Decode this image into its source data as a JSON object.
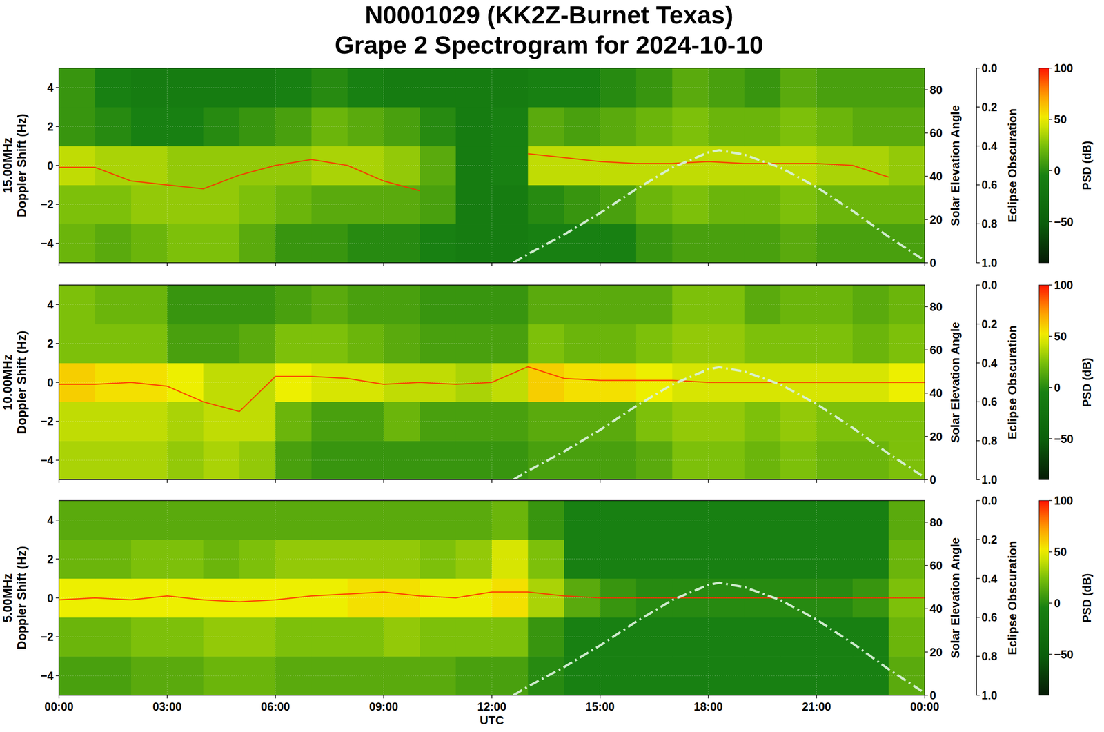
{
  "chart_data": [
    {
      "type": "heatmap",
      "title": [
        "N0001029 (KK2Z-Burnet Texas)",
        "Grape 2 Spectrogram for 2024-10-10"
      ],
      "ylabel": [
        "15.00MHz",
        "Doppler Shift (Hz)"
      ],
      "y2label": "Solar Elevation Angle",
      "y3label": "Eclipse Obscuration",
      "xlim": [
        0,
        24
      ],
      "xticks": [
        {
          "value": 0,
          "label": "00:00"
        },
        {
          "value": 3,
          "label": "03:00"
        },
        {
          "value": 6,
          "label": "06:00"
        },
        {
          "value": 9,
          "label": "09:00"
        },
        {
          "value": 12,
          "label": "12:00"
        },
        {
          "value": 15,
          "label": "15:00"
        },
        {
          "value": 18,
          "label": "18:00"
        },
        {
          "value": 21,
          "label": "21:00"
        },
        {
          "value": 24,
          "label": "00:00"
        }
      ],
      "ylim": [
        -5,
        5
      ],
      "yticks": [
        {
          "value": -4,
          "label": "−4"
        },
        {
          "value": -2,
          "label": "−2"
        },
        0,
        2,
        4
      ],
      "y2lim": [
        0,
        90
      ],
      "y2ticks": [
        0,
        20,
        40,
        60,
        80
      ],
      "y3lim": [
        1,
        0
      ],
      "y3ticks": [
        {
          "value": 0,
          "label": "0.0"
        },
        {
          "value": 0.2,
          "label": "0.2"
        },
        {
          "value": 0.4,
          "label": "0.4"
        },
        {
          "value": 0.6,
          "label": "0.6"
        },
        {
          "value": 0.8,
          "label": "0.8"
        },
        {
          "value": 1,
          "label": "1.0"
        }
      ],
      "grid": true,
      "tick_labels": "y",
      "colorbar": {
        "label": "PSD (dB)",
        "lim": [
          -90,
          100
        ],
        "ticks": [
          {
            "value": -50,
            "label": "−50"
          },
          0,
          50,
          100
        ]
      },
      "x_edges": [
        0,
        1,
        2,
        3,
        4,
        5,
        6,
        7,
        8,
        9,
        10,
        11,
        12,
        13,
        14,
        15,
        16,
        17,
        18,
        19,
        20,
        21,
        22,
        23,
        24
      ],
      "y_edges": [
        -5,
        -3,
        -1,
        1,
        3,
        5
      ],
      "cells": [
        [
          20,
          15,
          20,
          25,
          25,
          15,
          5,
          5,
          0,
          0,
          -5,
          -10,
          -10,
          -5,
          -5,
          -5,
          5,
          10,
          10,
          10,
          15,
          10,
          10,
          10
        ],
        [
          25,
          25,
          30,
          30,
          30,
          25,
          20,
          15,
          15,
          15,
          10,
          -10,
          -10,
          0,
          5,
          10,
          20,
          25,
          20,
          20,
          25,
          20,
          20,
          20
        ],
        [
          40,
          35,
          35,
          30,
          30,
          30,
          30,
          35,
          35,
          30,
          15,
          -10,
          -5,
          40,
          40,
          40,
          40,
          40,
          40,
          40,
          40,
          35,
          35,
          30
        ],
        [
          5,
          0,
          -5,
          -5,
          0,
          5,
          10,
          20,
          15,
          10,
          0,
          -10,
          -5,
          15,
          10,
          15,
          20,
          25,
          20,
          20,
          25,
          20,
          15,
          15
        ],
        [
          5,
          -5,
          -10,
          -10,
          -10,
          -10,
          -5,
          0,
          -5,
          -10,
          -10,
          -10,
          -10,
          -5,
          -5,
          0,
          5,
          15,
          10,
          5,
          15,
          10,
          10,
          10
        ]
      ],
      "series": [
        {
          "type": "line",
          "color": "#ff2a00",
          "line_style": "solid",
          "x": [
            0,
            1,
            2,
            3,
            4,
            5,
            6,
            7,
            8,
            9,
            10,
            11,
            12,
            13,
            14,
            15,
            16,
            17,
            18,
            19,
            20,
            21,
            22,
            23,
            24
          ],
          "values": [
            -0.1,
            -0.1,
            -0.8,
            -1.0,
            -1.2,
            -0.5,
            0.0,
            0.3,
            0.0,
            -0.8,
            -1.3,
            null,
            null,
            0.6,
            0.4,
            0.2,
            0.1,
            0.1,
            0.2,
            0.1,
            0.1,
            0.1,
            0.0,
            -0.6,
            null
          ]
        },
        {
          "type": "line",
          "axis": "y2",
          "color": "#d8f0d8",
          "line_style": "dashdot",
          "x": [
            12.6,
            13,
            14,
            15,
            16,
            17,
            18,
            18.3,
            19,
            20,
            21,
            22,
            23,
            24
          ],
          "values": [
            0,
            4,
            13,
            23,
            34,
            44,
            51,
            52,
            50,
            44,
            35,
            24,
            12,
            1
          ]
        }
      ]
    },
    {
      "type": "heatmap",
      "ylabel": [
        "10.00MHz",
        "Doppler Shift (Hz)"
      ],
      "y2label": "Solar Elevation Angle",
      "y3label": "Eclipse Obscuration",
      "xlim": [
        0,
        24
      ],
      "xticks": [
        {
          "value": 0,
          "label": "00:00"
        },
        {
          "value": 3,
          "label": "03:00"
        },
        {
          "value": 6,
          "label": "06:00"
        },
        {
          "value": 9,
          "label": "09:00"
        },
        {
          "value": 12,
          "label": "12:00"
        },
        {
          "value": 15,
          "label": "15:00"
        },
        {
          "value": 18,
          "label": "18:00"
        },
        {
          "value": 21,
          "label": "21:00"
        },
        {
          "value": 24,
          "label": "00:00"
        }
      ],
      "ylim": [
        -5,
        5
      ],
      "yticks": [
        {
          "value": -4,
          "label": "−4"
        },
        {
          "value": -2,
          "label": "−2"
        },
        0,
        2,
        4
      ],
      "y2lim": [
        0,
        90
      ],
      "y2ticks": [
        0,
        20,
        40,
        60,
        80
      ],
      "y3lim": [
        1,
        0
      ],
      "y3ticks": [
        {
          "value": 0,
          "label": "0.0"
        },
        {
          "value": 0.2,
          "label": "0.2"
        },
        {
          "value": 0.4,
          "label": "0.4"
        },
        {
          "value": 0.6,
          "label": "0.6"
        },
        {
          "value": 0.8,
          "label": "0.8"
        },
        {
          "value": 1,
          "label": "1.0"
        }
      ],
      "grid": true,
      "tick_labels": "y",
      "colorbar": {
        "label": "PSD (dB)",
        "lim": [
          -90,
          100
        ],
        "ticks": [
          {
            "value": -50,
            "label": "−50"
          },
          0,
          50,
          100
        ]
      },
      "x_edges": [
        0,
        1,
        2,
        3,
        4,
        5,
        6,
        7,
        8,
        9,
        10,
        11,
        12,
        13,
        14,
        15,
        16,
        17,
        18,
        19,
        20,
        21,
        22,
        23,
        24
      ],
      "y_edges": [
        -5,
        -3,
        -1,
        1,
        3,
        5
      ],
      "cells": [
        [
          35,
          35,
          35,
          30,
          35,
          30,
          10,
          5,
          5,
          5,
          5,
          5,
          5,
          10,
          10,
          10,
          15,
          25,
          25,
          20,
          25,
          20,
          20,
          25
        ],
        [
          40,
          40,
          40,
          35,
          40,
          40,
          20,
          10,
          10,
          20,
          10,
          10,
          10,
          15,
          15,
          15,
          25,
          30,
          30,
          25,
          30,
          25,
          25,
          25
        ],
        [
          60,
          55,
          55,
          50,
          40,
          40,
          50,
          45,
          45,
          40,
          40,
          35,
          40,
          60,
          55,
          55,
          50,
          45,
          45,
          45,
          45,
          45,
          45,
          50
        ],
        [
          25,
          25,
          25,
          10,
          10,
          15,
          25,
          25,
          20,
          15,
          10,
          10,
          10,
          25,
          20,
          20,
          25,
          30,
          30,
          25,
          25,
          25,
          20,
          25
        ],
        [
          25,
          20,
          20,
          5,
          5,
          5,
          10,
          15,
          10,
          10,
          5,
          5,
          5,
          15,
          15,
          15,
          15,
          25,
          25,
          15,
          20,
          20,
          15,
          20
        ]
      ],
      "series": [
        {
          "type": "line",
          "color": "#ff2a00",
          "line_style": "solid",
          "x": [
            0,
            1,
            2,
            3,
            4,
            5,
            6,
            7,
            8,
            9,
            10,
            11,
            12,
            13,
            14,
            15,
            16,
            17,
            18,
            19,
            20,
            21,
            22,
            23,
            24
          ],
          "values": [
            -0.1,
            -0.1,
            0.0,
            -0.2,
            -1.0,
            -1.5,
            0.3,
            0.3,
            0.2,
            -0.1,
            0.0,
            -0.1,
            0.0,
            0.8,
            0.2,
            0.1,
            0.1,
            0.1,
            0.0,
            0.0,
            0.0,
            0.0,
            0.0,
            0.0,
            0.0
          ]
        },
        {
          "type": "line",
          "axis": "y2",
          "color": "#d8f0d8",
          "line_style": "dashdot",
          "x": [
            12.6,
            13,
            14,
            15,
            16,
            17,
            18,
            18.3,
            19,
            20,
            21,
            22,
            23,
            24
          ],
          "values": [
            0,
            4,
            13,
            23,
            34,
            44,
            51,
            52,
            50,
            44,
            35,
            24,
            12,
            1
          ]
        }
      ]
    },
    {
      "type": "heatmap",
      "xlabel": "UTC",
      "ylabel": [
        "5.00MHz",
        "Doppler Shift (Hz)"
      ],
      "y2label": "Solar Elevation Angle",
      "y3label": "Eclipse Obscuration",
      "xlim": [
        0,
        24
      ],
      "xticks": [
        {
          "value": 0,
          "label": "00:00"
        },
        {
          "value": 3,
          "label": "03:00"
        },
        {
          "value": 6,
          "label": "06:00"
        },
        {
          "value": 9,
          "label": "09:00"
        },
        {
          "value": 12,
          "label": "12:00"
        },
        {
          "value": 15,
          "label": "15:00"
        },
        {
          "value": 18,
          "label": "18:00"
        },
        {
          "value": 21,
          "label": "21:00"
        },
        {
          "value": 24,
          "label": "00:00"
        }
      ],
      "ylim": [
        -5,
        5
      ],
      "yticks": [
        {
          "value": -4,
          "label": "−4"
        },
        {
          "value": -2,
          "label": "−2"
        },
        0,
        2,
        4
      ],
      "y2lim": [
        0,
        90
      ],
      "y2ticks": [
        0,
        20,
        40,
        60,
        80
      ],
      "y3lim": [
        1,
        0
      ],
      "y3ticks": [
        {
          "value": 0,
          "label": "0.0"
        },
        {
          "value": 0.2,
          "label": "0.2"
        },
        {
          "value": 0.4,
          "label": "0.4"
        },
        {
          "value": 0.6,
          "label": "0.6"
        },
        {
          "value": 0.8,
          "label": "0.8"
        },
        {
          "value": 1,
          "label": "1.0"
        }
      ],
      "grid": true,
      "colorbar": {
        "label": "PSD (dB)",
        "lim": [
          -90,
          100
        ],
        "ticks": [
          {
            "value": -50,
            "label": "−50"
          },
          0,
          50,
          100
        ]
      },
      "x_edges": [
        0,
        1,
        2,
        3,
        4,
        5,
        6,
        7,
        8,
        9,
        10,
        11,
        12,
        13,
        14,
        15,
        16,
        17,
        18,
        19,
        20,
        21,
        22,
        23,
        24
      ],
      "y_edges": [
        -5,
        -3,
        -1,
        1,
        3,
        5
      ],
      "cells": [
        [
          10,
          10,
          15,
          15,
          20,
          20,
          15,
          15,
          15,
          15,
          15,
          10,
          10,
          0,
          -5,
          -5,
          -5,
          -5,
          -5,
          -5,
          -5,
          -5,
          -5,
          15
        ],
        [
          20,
          20,
          25,
          25,
          30,
          30,
          25,
          25,
          25,
          30,
          25,
          25,
          25,
          5,
          -5,
          -5,
          -5,
          -5,
          -5,
          -5,
          -5,
          -5,
          -5,
          20
        ],
        [
          50,
          50,
          50,
          50,
          50,
          50,
          50,
          50,
          55,
          55,
          50,
          50,
          55,
          35,
          15,
          5,
          0,
          0,
          0,
          0,
          0,
          0,
          5,
          25
        ],
        [
          20,
          20,
          25,
          25,
          20,
          25,
          30,
          30,
          30,
          30,
          25,
          30,
          45,
          25,
          -5,
          -5,
          -5,
          -5,
          -5,
          -5,
          -5,
          -5,
          -5,
          20
        ],
        [
          15,
          15,
          15,
          15,
          15,
          15,
          15,
          15,
          15,
          15,
          15,
          15,
          20,
          5,
          -5,
          -5,
          -5,
          -5,
          -5,
          -5,
          -5,
          -5,
          -5,
          15
        ]
      ],
      "series": [
        {
          "type": "line",
          "color": "#ff2a00",
          "line_style": "solid",
          "x": [
            0,
            1,
            2,
            3,
            4,
            5,
            6,
            7,
            8,
            9,
            10,
            11,
            12,
            13,
            14,
            15,
            16,
            17,
            18,
            19,
            20,
            21,
            22,
            23,
            24
          ],
          "values": [
            -0.1,
            0.0,
            -0.1,
            0.1,
            -0.1,
            -0.2,
            -0.1,
            0.1,
            0.2,
            0.3,
            0.1,
            0.0,
            0.3,
            0.3,
            0.1,
            0.0,
            0.0,
            0.0,
            0.0,
            0.0,
            0.0,
            0.0,
            0.0,
            0.0,
            0.0
          ]
        },
        {
          "type": "line",
          "axis": "y2",
          "color": "#d8f0d8",
          "line_style": "dashdot",
          "x": [
            12.6,
            13,
            14,
            15,
            16,
            17,
            18,
            18.3,
            19,
            20,
            21,
            22,
            23,
            24
          ],
          "values": [
            0,
            4,
            13,
            23,
            34,
            44,
            51,
            52,
            50,
            44,
            35,
            24,
            12,
            1
          ]
        }
      ]
    }
  ]
}
